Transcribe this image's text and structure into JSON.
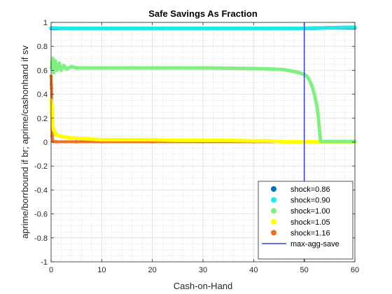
{
  "chart_data": {
    "type": "scatter",
    "title": "Safe Savings As Fraction",
    "xlabel": "Cash-on-Hand",
    "ylabel": "aprime/borrbound if br; aprime/cashonhand if sv",
    "xlim": [
      0,
      60
    ],
    "ylim": [
      -1,
      1
    ],
    "x_ticks": [
      "0",
      "10",
      "20",
      "30",
      "40",
      "50",
      "60"
    ],
    "y_ticks": [
      "-1",
      "-0.8",
      "-0.6",
      "-0.4",
      "-0.2",
      "0",
      "0.2",
      "0.4",
      "0.6",
      "0.8",
      "1"
    ],
    "grid": true,
    "minor_grid": true,
    "legend_position": "bottom-right",
    "series": [
      {
        "name": "shock=0.86",
        "color": "#0072BD",
        "points": [
          [
            0,
            0.95
          ],
          [
            5,
            0.95
          ],
          [
            10,
            0.95
          ],
          [
            20,
            0.95
          ],
          [
            30,
            0.95
          ],
          [
            40,
            0.95
          ],
          [
            50,
            0.95
          ],
          [
            55,
            0.955
          ],
          [
            60,
            0.955
          ]
        ]
      },
      {
        "name": "shock=0.90",
        "color": "#22E8E8",
        "points": [
          [
            0,
            0.955
          ],
          [
            2,
            0.95
          ],
          [
            5,
            0.95
          ],
          [
            10,
            0.95
          ],
          [
            20,
            0.95
          ],
          [
            30,
            0.95
          ],
          [
            40,
            0.95
          ],
          [
            48,
            0.95
          ],
          [
            50,
            0.95
          ],
          [
            52,
            0.952
          ],
          [
            55,
            0.955
          ],
          [
            58,
            0.958
          ],
          [
            60,
            0.96
          ]
        ]
      },
      {
        "name": "shock=1.00",
        "color": "#80F080",
        "points": [
          [
            0.1,
            0.62
          ],
          [
            0.3,
            0.7
          ],
          [
            0.5,
            0.58
          ],
          [
            0.8,
            0.68
          ],
          [
            1.2,
            0.6
          ],
          [
            1.6,
            0.66
          ],
          [
            2,
            0.6
          ],
          [
            2.5,
            0.64
          ],
          [
            3,
            0.61
          ],
          [
            4,
            0.63
          ],
          [
            5,
            0.62
          ],
          [
            10,
            0.62
          ],
          [
            20,
            0.62
          ],
          [
            30,
            0.62
          ],
          [
            40,
            0.615
          ],
          [
            44,
            0.61
          ],
          [
            46,
            0.605
          ],
          [
            48,
            0.59
          ],
          [
            49,
            0.58
          ],
          [
            50,
            0.565
          ],
          [
            50.5,
            0.55
          ],
          [
            51,
            0.52
          ],
          [
            51.5,
            0.47
          ],
          [
            52,
            0.4
          ],
          [
            52.5,
            0.3
          ],
          [
            52.8,
            0.2
          ],
          [
            53,
            0.1
          ],
          [
            53.2,
            0.02
          ],
          [
            53.3,
            0.005
          ],
          [
            54,
            0.005
          ],
          [
            56,
            0.005
          ],
          [
            58,
            0.005
          ],
          [
            60,
            0.005
          ]
        ]
      },
      {
        "name": "shock=1.05",
        "color": "#FFFF00",
        "points": [
          [
            0,
            0.35
          ],
          [
            0.1,
            0.2
          ],
          [
            0.2,
            0.3
          ],
          [
            0.3,
            0.15
          ],
          [
            0.5,
            0.1
          ],
          [
            0.8,
            0.08
          ],
          [
            1,
            0.06
          ],
          [
            2,
            0.05
          ],
          [
            3,
            0.04
          ],
          [
            4,
            0.035
          ],
          [
            6,
            0.03
          ],
          [
            8,
            0.025
          ],
          [
            10,
            0.02
          ],
          [
            15,
            0.02
          ],
          [
            20,
            0.02
          ],
          [
            25,
            0.015
          ],
          [
            30,
            0.015
          ],
          [
            35,
            0.015
          ],
          [
            40,
            0.01
          ],
          [
            43,
            0.01
          ],
          [
            45,
            0.005
          ],
          [
            46,
            0.002
          ],
          [
            50,
            0.002
          ],
          [
            55,
            0.002
          ],
          [
            60,
            0.002
          ]
        ]
      },
      {
        "name": "shock=1.16",
        "color": "#F07020",
        "points": [
          [
            0,
            0.55
          ],
          [
            0.05,
            0.48
          ],
          [
            0.1,
            0.45
          ],
          [
            0.2,
            0.05
          ],
          [
            0.3,
            0.01
          ],
          [
            0.5,
            0.005
          ],
          [
            1,
            0.003
          ],
          [
            5,
            0.003
          ],
          [
            10,
            0.003
          ],
          [
            20,
            0.003
          ],
          [
            30,
            0.003
          ],
          [
            40,
            0.003
          ],
          [
            50,
            0.003
          ],
          [
            60,
            0.003
          ]
        ]
      },
      {
        "name": "max-agg-save",
        "color": "#3040E8",
        "type": "vline",
        "x": 50
      }
    ]
  }
}
